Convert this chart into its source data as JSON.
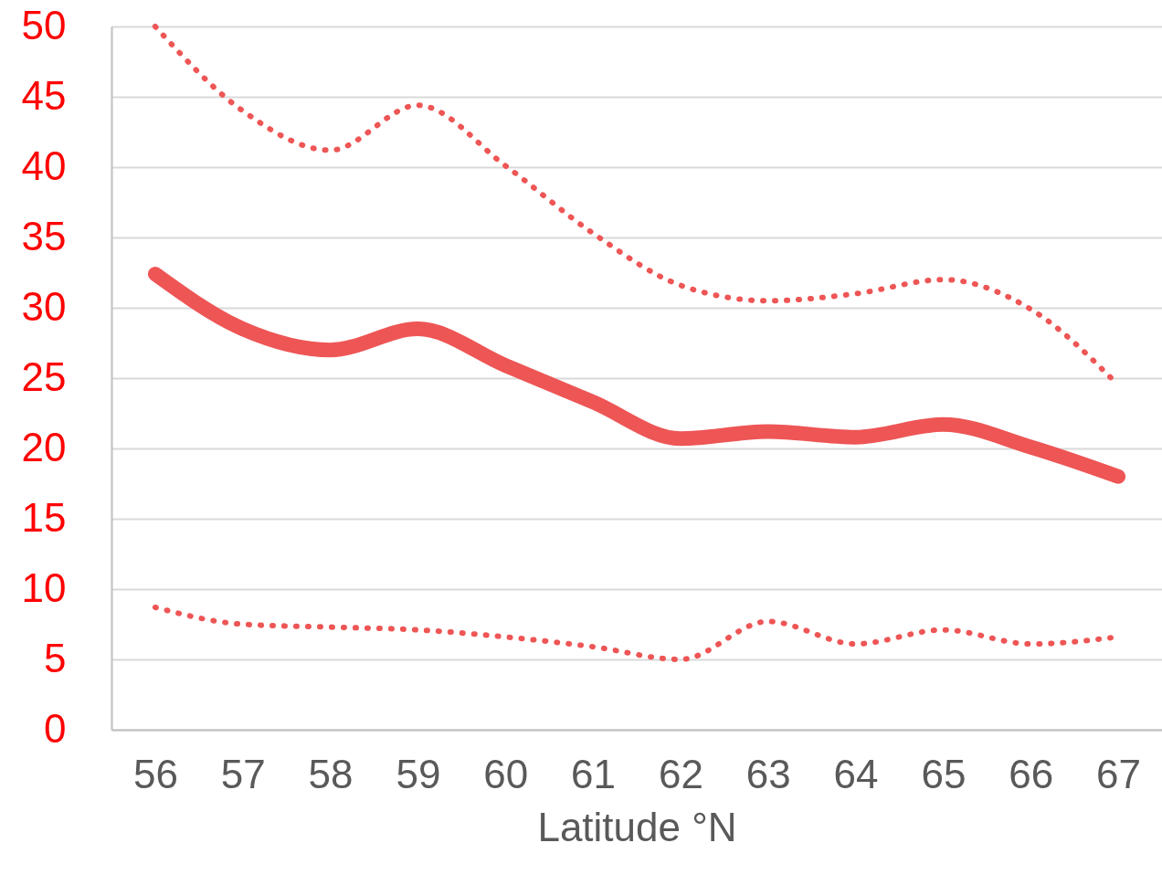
{
  "chart_data": {
    "type": "line",
    "xlabel": "Latitude °N",
    "categories": [
      "56",
      "57",
      "58",
      "59",
      "60",
      "61",
      "62",
      "63",
      "64",
      "65",
      "66",
      "67"
    ],
    "series": [
      {
        "color": "#ee5555",
        "line_style": "dotted",
        "values": [
          50,
          44,
          41.2,
          44.4,
          40.1,
          35.3,
          31.6,
          30.5,
          31,
          32,
          29.9,
          24.5
        ]
      },
      {
        "color": "#ee5555",
        "line_style": "solid",
        "values": [
          32.4,
          28.5,
          27,
          28.5,
          25.9,
          23.3,
          20.7,
          21.2,
          20.8,
          21.7,
          20.1,
          18
        ]
      },
      {
        "color": "#ee5555",
        "line_style": "dotted",
        "values": [
          8.7,
          7.5,
          7.3,
          7.1,
          6.6,
          5.9,
          5,
          7.7,
          6.1,
          7.1,
          6.1,
          6.6
        ]
      }
    ],
    "ylim": [
      0,
      50
    ],
    "yticks": [
      0,
      5,
      10,
      15,
      20,
      25,
      30,
      35,
      40,
      45,
      50
    ],
    "grid": "y",
    "marker": "none"
  }
}
